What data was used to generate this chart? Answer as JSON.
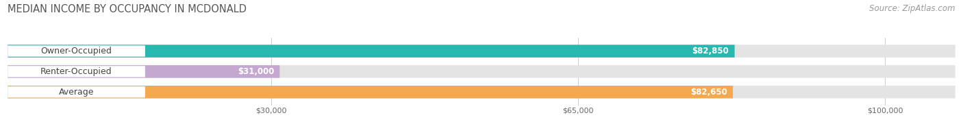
{
  "title": "MEDIAN INCOME BY OCCUPANCY IN MCDONALD",
  "source": "Source: ZipAtlas.com",
  "categories": [
    "Owner-Occupied",
    "Renter-Occupied",
    "Average"
  ],
  "values": [
    82850,
    31000,
    82650
  ],
  "bar_colors": [
    "#29b8b0",
    "#c5a8d0",
    "#f5a94e"
  ],
  "bar_bg_color": "#e4e4e4",
  "value_labels": [
    "$82,850",
    "$31,000",
    "$82,650"
  ],
  "x_ticks": [
    30000,
    65000,
    100000
  ],
  "x_tick_labels": [
    "$30,000",
    "$65,000",
    "$100,000"
  ],
  "xmin": 0,
  "xmax": 108000,
  "bar_height": 0.62,
  "title_fontsize": 10.5,
  "source_fontsize": 8.5,
  "label_fontsize": 9,
  "value_fontsize": 8.5,
  "tick_fontsize": 8
}
